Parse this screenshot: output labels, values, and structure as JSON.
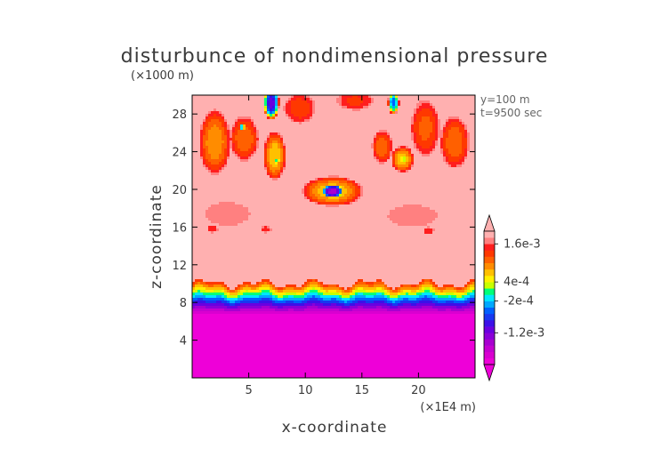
{
  "chart_data": {
    "type": "heatmap",
    "title": "disturbunce of nondimensional pressure",
    "xlabel": "x-coordinate",
    "ylabel": "z-coordinate",
    "x_unit": "(×1E4 m)",
    "y_unit": "(×1000 m)",
    "info_lines": [
      "y=100 m",
      "t=9500 sec"
    ],
    "xlim": [
      0,
      25
    ],
    "ylim": [
      0,
      30
    ],
    "x_ticks": [
      5,
      10,
      15,
      20
    ],
    "y_ticks": [
      4,
      8,
      12,
      16,
      20,
      24,
      28
    ],
    "colorbar": {
      "labels": [
        {
          "text": "1.6e-3",
          "value": 0.0016
        },
        {
          "text": "4e-4",
          "value": 0.0004
        },
        {
          "text": "-2e-4",
          "value": -0.0002
        },
        {
          "text": "-1.2e-3",
          "value": -0.0012
        }
      ],
      "levels": [
        -0.0022,
        -0.002,
        -0.0018,
        -0.0016,
        -0.0014,
        -0.0012,
        -0.001,
        -0.0008,
        -0.0006,
        -0.0004,
        -0.0002,
        0.0,
        0.0002,
        0.0004,
        0.0006,
        0.0008,
        0.001,
        0.0012,
        0.0014,
        0.0016,
        0.0018
      ],
      "colors": [
        "#ee00d8",
        "#d900d0",
        "#c400d0",
        "#a800d0",
        "#8a00d8",
        "#6a00e0",
        "#3c10e8",
        "#1838f0",
        "#0060ff",
        "#00a8ff",
        "#00e8ff",
        "#00ff78",
        "#c8ff00",
        "#fff000",
        "#ffc000",
        "#ff8c00",
        "#ff6000",
        "#ff3800",
        "#ff1e1e",
        "#ff8080",
        "#ffb0b0"
      ]
    },
    "field": {
      "background": 0.00185,
      "near_surface_band": {
        "z_top": 6.6,
        "value": -0.0023
      },
      "transition_band": {
        "z_bottom": 6.6,
        "z_top": 10.0,
        "value_bottom": -0.0023,
        "value_top": 0.0014
      },
      "lobes": [
        {
          "x": 12.4,
          "z": 19.8,
          "rx": 2.7,
          "rz": 1.6,
          "value": 0.0006
        },
        {
          "x": 12.4,
          "z": 19.8,
          "rx": 0.9,
          "rz": 0.7,
          "value": -0.0016
        },
        {
          "x": 7.0,
          "z": 29.2,
          "rx": 0.7,
          "rz": 1.8,
          "value": -0.0012
        },
        {
          "x": 17.8,
          "z": 29.2,
          "rx": 0.5,
          "rz": 1.2,
          "value": -0.0006
        },
        {
          "x": 2.0,
          "z": 25.0,
          "rx": 1.4,
          "rz": 3.5,
          "value": 0.0008
        },
        {
          "x": 4.6,
          "z": 25.4,
          "rx": 1.3,
          "rz": 2.4,
          "value": 0.001
        },
        {
          "x": 7.3,
          "z": 23.6,
          "rx": 1.0,
          "rz": 2.6,
          "value": 0.0006
        },
        {
          "x": 9.5,
          "z": 28.6,
          "rx": 1.4,
          "rz": 1.6,
          "value": 0.0012
        },
        {
          "x": 16.8,
          "z": 24.5,
          "rx": 0.9,
          "rz": 1.8,
          "value": 0.001
        },
        {
          "x": 18.6,
          "z": 23.2,
          "rx": 1.0,
          "rz": 1.4,
          "value": 0.0006
        },
        {
          "x": 20.6,
          "z": 26.5,
          "rx": 1.3,
          "rz": 3.0,
          "value": 0.0011
        },
        {
          "x": 23.2,
          "z": 25.0,
          "rx": 1.3,
          "rz": 2.8,
          "value": 0.001
        },
        {
          "x": 14.4,
          "z": 29.4,
          "rx": 1.6,
          "rz": 1.0,
          "value": 0.0013
        },
        {
          "x": 4.4,
          "z": 26.6,
          "rx": 0.25,
          "rz": 0.35,
          "value": -0.0002
        },
        {
          "x": 7.5,
          "z": 23.0,
          "rx": 0.22,
          "rz": 0.3,
          "value": 0.0001
        },
        {
          "x": 18.7,
          "z": 23.2,
          "rx": 0.22,
          "rz": 0.3,
          "value": 0.0002
        },
        {
          "x": 3.1,
          "z": 17.4,
          "rx": 2.1,
          "rz": 1.3,
          "value": 0.0016
        },
        {
          "x": 1.8,
          "z": 15.8,
          "rx": 0.5,
          "rz": 0.4,
          "value": 0.0014
        },
        {
          "x": 6.5,
          "z": 15.8,
          "rx": 0.5,
          "rz": 0.4,
          "value": 0.0015
        },
        {
          "x": 19.5,
          "z": 17.2,
          "rx": 2.3,
          "rz": 1.2,
          "value": 0.0016
        },
        {
          "x": 20.9,
          "z": 15.6,
          "rx": 0.5,
          "rz": 0.4,
          "value": 0.0014
        }
      ]
    }
  }
}
